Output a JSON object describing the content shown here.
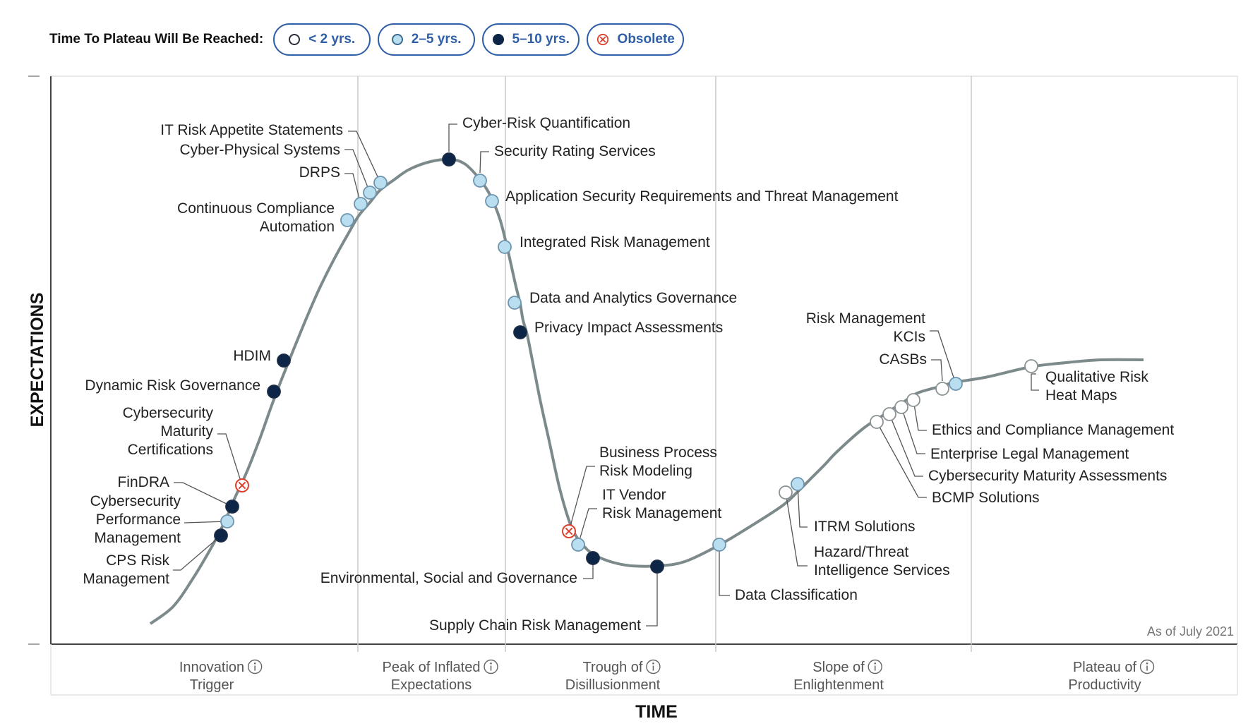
{
  "legend": {
    "title": "Time To Plateau Will Be Reached:",
    "items": [
      {
        "label": "< 2 yrs.",
        "marker": "open-circle"
      },
      {
        "label": "2–5 yrs.",
        "marker": "light-circle"
      },
      {
        "label": "5–10 yrs.",
        "marker": "dark-circle"
      },
      {
        "label": "Obsolete",
        "marker": "x-circle"
      }
    ]
  },
  "colors": {
    "curve": "#7d8a8c",
    "dark_marker": "#0d2547",
    "light_marker": "#b9def0",
    "obsolete_marker": "#d9412e",
    "legend_accent": "#2f5fa7"
  },
  "chart_data": {
    "type": "hype-cycle",
    "ylabel": "EXPECTATIONS",
    "xlabel": "TIME",
    "note": "As of July 2021",
    "info_icon": "info-circle-icon",
    "phases": [
      {
        "line1": "Innovation",
        "line2": "Trigger"
      },
      {
        "line1": "Peak of Inflated",
        "line2": "Expectations"
      },
      {
        "line1": "Trough of",
        "line2": "Disillusionment"
      },
      {
        "line1": "Slope of",
        "line2": "Enlightenment"
      },
      {
        "line1": "Plateau of",
        "line2": "Productivity"
      }
    ],
    "technologies": [
      {
        "name": "CPS Risk Management",
        "lines": [
          "CPS Risk",
          "Management"
        ],
        "time_to_plateau": "5–10 yrs."
      },
      {
        "name": "Cybersecurity Performance Management",
        "lines": [
          "Cybersecurity",
          "Performance",
          "Management"
        ],
        "time_to_plateau": "2–5 yrs."
      },
      {
        "name": "FinDRA",
        "lines": [
          "FinDRA"
        ],
        "time_to_plateau": "5–10 yrs."
      },
      {
        "name": "Cybersecurity Maturity Certifications",
        "lines": [
          "Cybersecurity",
          "Maturity",
          "Certifications"
        ],
        "time_to_plateau": "Obsolete"
      },
      {
        "name": "Dynamic Risk Governance",
        "lines": [
          "Dynamic Risk Governance"
        ],
        "time_to_plateau": "5–10 yrs."
      },
      {
        "name": "HDIM",
        "lines": [
          "HDIM"
        ],
        "time_to_plateau": "5–10 yrs."
      },
      {
        "name": "Continuous Compliance Automation",
        "lines": [
          "Continuous Compliance",
          "Automation"
        ],
        "time_to_plateau": "2–5 yrs."
      },
      {
        "name": "DRPS",
        "lines": [
          "DRPS"
        ],
        "time_to_plateau": "2–5 yrs."
      },
      {
        "name": "Cyber-Physical Systems",
        "lines": [
          "Cyber-Physical Systems"
        ],
        "time_to_plateau": "2–5 yrs."
      },
      {
        "name": "IT Risk Appetite Statements",
        "lines": [
          "IT Risk Appetite Statements"
        ],
        "time_to_plateau": "2–5 yrs."
      },
      {
        "name": "Cyber-Risk Quantification",
        "lines": [
          "Cyber-Risk Quantification"
        ],
        "time_to_plateau": "5–10 yrs."
      },
      {
        "name": "Security Rating Services",
        "lines": [
          "Security Rating Services"
        ],
        "time_to_plateau": "2–5 yrs."
      },
      {
        "name": "Application Security Requirements and Threat Management",
        "lines": [
          "Application Security Requirements and Threat Management"
        ],
        "time_to_plateau": "2–5 yrs."
      },
      {
        "name": "Integrated Risk Management",
        "lines": [
          "Integrated Risk Management"
        ],
        "time_to_plateau": "2–5 yrs."
      },
      {
        "name": "Data and Analytics Governance",
        "lines": [
          "Data and Analytics Governance"
        ],
        "time_to_plateau": "2–5 yrs."
      },
      {
        "name": "Privacy Impact Assessments",
        "lines": [
          "Privacy Impact Assessments"
        ],
        "time_to_plateau": "5–10 yrs."
      },
      {
        "name": "Business Process Risk Modeling",
        "lines": [
          "Business Process",
          "Risk Modeling"
        ],
        "time_to_plateau": "Obsolete"
      },
      {
        "name": "IT Vendor Risk Management",
        "lines": [
          "IT Vendor",
          "Risk Management"
        ],
        "time_to_plateau": "2–5 yrs."
      },
      {
        "name": "Environmental, Social and Governance",
        "lines": [
          "Environmental, Social and Governance"
        ],
        "time_to_plateau": "5–10 yrs."
      },
      {
        "name": "Supply Chain Risk Management",
        "lines": [
          "Supply Chain Risk Management"
        ],
        "time_to_plateau": "5–10 yrs."
      },
      {
        "name": "Data Classification",
        "lines": [
          "Data Classification"
        ],
        "time_to_plateau": "2–5 yrs."
      },
      {
        "name": "Hazard/Threat Intelligence Services",
        "lines": [
          "Hazard/Threat",
          "Intelligence Services"
        ],
        "time_to_plateau": "< 2 yrs."
      },
      {
        "name": "ITRM Solutions",
        "lines": [
          "ITRM Solutions"
        ],
        "time_to_plateau": "2–5 yrs."
      },
      {
        "name": "BCMP Solutions",
        "lines": [
          "BCMP Solutions"
        ],
        "time_to_plateau": "< 2 yrs."
      },
      {
        "name": "Cybersecurity Maturity Assessments",
        "lines": [
          "Cybersecurity Maturity Assessments"
        ],
        "time_to_plateau": "< 2 yrs."
      },
      {
        "name": "Enterprise Legal Management",
        "lines": [
          "Enterprise Legal Management"
        ],
        "time_to_plateau": "< 2 yrs."
      },
      {
        "name": "Ethics and Compliance Management",
        "lines": [
          "Ethics and Compliance Management"
        ],
        "time_to_plateau": "< 2 yrs."
      },
      {
        "name": "CASBs",
        "lines": [
          "CASBs"
        ],
        "time_to_plateau": "< 2 yrs."
      },
      {
        "name": "Risk Management KCIs",
        "lines": [
          "Risk Management",
          "KCIs"
        ],
        "time_to_plateau": "2–5 yrs."
      },
      {
        "name": "Qualitative Risk Heat Maps",
        "lines": [
          "Qualitative Risk",
          "Heat Maps"
        ],
        "time_to_plateau": "< 2 yrs."
      }
    ]
  }
}
